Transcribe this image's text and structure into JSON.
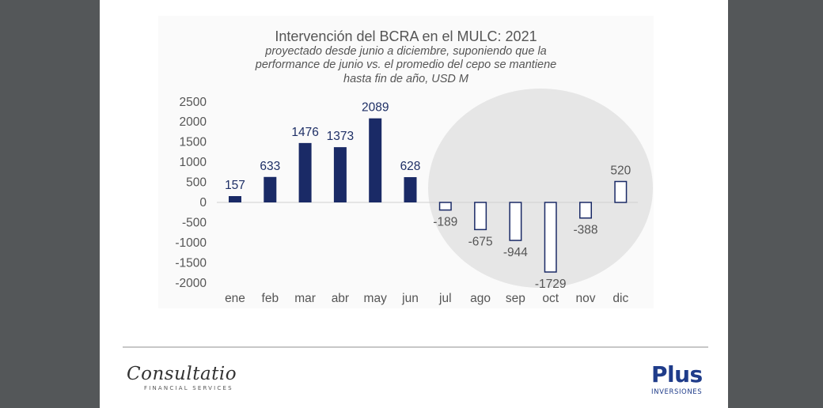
{
  "chart_data": {
    "type": "bar",
    "title": "Intervención del BCRA en el MULC: 2021",
    "subtitle_lines": [
      "proyectado desde junio a diciembre, suponiendo que la",
      "performance de junio vs. el promedio del cepo se mantiene",
      "hasta fin de año, USD M"
    ],
    "categories": [
      "ene",
      "feb",
      "mar",
      "abr",
      "may",
      "jun",
      "jul",
      "ago",
      "sep",
      "oct",
      "nov",
      "dic"
    ],
    "values": [
      157,
      633,
      1476,
      1373,
      2089,
      628,
      -189,
      -675,
      -944,
      -1729,
      -388,
      520
    ],
    "projected_from_index": 6,
    "ylim": [
      -2000,
      2500
    ],
    "yticks": [
      2500,
      2000,
      1500,
      1000,
      500,
      0,
      -500,
      -1000,
      -1500,
      -2000
    ],
    "grid": false,
    "highlight": "gray circle behind projected months",
    "colors": {
      "actual": "#1a2a66",
      "projected_fill": "#ffffff",
      "projected_stroke": "#1a2a66",
      "highlight": "#e6e6e6"
    }
  },
  "footer": {
    "brand_left": "Consultatio",
    "brand_left_tagline": "FINANCIAL SERVICES",
    "brand_right": "Plus",
    "brand_right_tagline": "INVERSIONES"
  }
}
